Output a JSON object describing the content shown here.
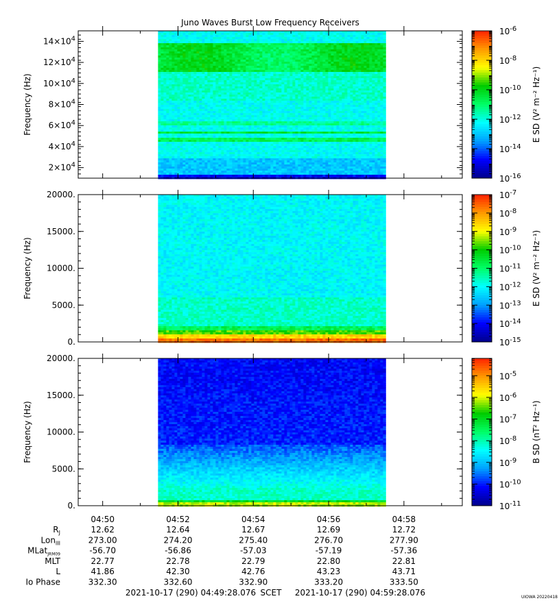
{
  "title": "Juno Waves Burst Low Frequency Receivers",
  "footer_mark": "UIOWA 20220418",
  "time_range": {
    "start": "2021-10-17 (290) 04:49:28.076",
    "label": "SCET",
    "end": "2021-10-17 (290) 04:59:28.076"
  },
  "colors": {
    "colormap": [
      "#00008b",
      "#0000ff",
      "#00a0ff",
      "#00ffff",
      "#00ff66",
      "#00cc00",
      "#ffff00",
      "#ff9900",
      "#ff2200"
    ]
  },
  "chart_data": [
    {
      "type": "heatmap",
      "ylabel": "Frequency (Hz)",
      "ylim": [
        10000,
        150000
      ],
      "yticks": [
        {
          "v": 20000,
          "m": "2×10",
          "e": "4"
        },
        {
          "v": 40000,
          "m": "4×10",
          "e": "4"
        },
        {
          "v": 60000,
          "m": "6×10",
          "e": "4"
        },
        {
          "v": 80000,
          "m": "8×10",
          "e": "4"
        },
        {
          "v": 100000,
          "m": "10×10",
          "e": "4"
        },
        {
          "v": 120000,
          "m": "12×10",
          "e": "4"
        },
        {
          "v": 140000,
          "m": "14×10",
          "e": "4"
        }
      ],
      "colorbar": {
        "label": "E SD (V² m⁻² Hz⁻¹)",
        "log_min": -16,
        "log_max": -6,
        "ticks": [
          {
            "m": "10",
            "e": "-6",
            "v": -6
          },
          {
            "m": "10",
            "e": "-8",
            "v": -8
          },
          {
            "m": "10",
            "e": "-10",
            "v": -10
          },
          {
            "m": "10",
            "e": "-12",
            "v": -12
          },
          {
            "m": "10",
            "e": "-14",
            "v": -14
          },
          {
            "m": "10",
            "e": "-16",
            "v": -16
          }
        ]
      }
    },
    {
      "type": "heatmap",
      "ylabel": "Frequency (Hz)",
      "ylim": [
        0,
        20000
      ],
      "yticks": [
        {
          "v": 0,
          "m": "0.",
          "e": ""
        },
        {
          "v": 5000,
          "m": "5000.",
          "e": ""
        },
        {
          "v": 10000,
          "m": "10000.",
          "e": ""
        },
        {
          "v": 15000,
          "m": "15000.",
          "e": ""
        },
        {
          "v": 20000,
          "m": "20000.",
          "e": ""
        }
      ],
      "colorbar": {
        "label": "E SD (V² m⁻² Hz⁻¹)",
        "log_min": -15,
        "log_max": -7,
        "ticks": [
          {
            "m": "10",
            "e": "-7",
            "v": -7
          },
          {
            "m": "10",
            "e": "-8",
            "v": -8
          },
          {
            "m": "10",
            "e": "-9",
            "v": -9
          },
          {
            "m": "10",
            "e": "-10",
            "v": -10
          },
          {
            "m": "10",
            "e": "-11",
            "v": -11
          },
          {
            "m": "10",
            "e": "-12",
            "v": -12
          },
          {
            "m": "10",
            "e": "-13",
            "v": -13
          },
          {
            "m": "10",
            "e": "-14",
            "v": -14
          },
          {
            "m": "10",
            "e": "-15",
            "v": -15
          }
        ]
      }
    },
    {
      "type": "heatmap",
      "ylabel": "Frequency (Hz)",
      "ylim": [
        0,
        20000
      ],
      "yticks": [
        {
          "v": 0,
          "m": "0.",
          "e": ""
        },
        {
          "v": 5000,
          "m": "5000.",
          "e": ""
        },
        {
          "v": 10000,
          "m": "10000.",
          "e": ""
        },
        {
          "v": 15000,
          "m": "15000.",
          "e": ""
        },
        {
          "v": 20000,
          "m": "20000.",
          "e": ""
        }
      ],
      "colorbar": {
        "label": "B SD (nT² Hz⁻¹)",
        "log_min": -11,
        "log_max": -4.2,
        "ticks": [
          {
            "m": "10",
            "e": "-5",
            "v": -5
          },
          {
            "m": "10",
            "e": "-6",
            "v": -6
          },
          {
            "m": "10",
            "e": "-7",
            "v": -7
          },
          {
            "m": "10",
            "e": "-8",
            "v": -8
          },
          {
            "m": "10",
            "e": "-9",
            "v": -9
          },
          {
            "m": "10",
            "e": "-10",
            "v": -10
          },
          {
            "m": "10",
            "e": "-11",
            "v": -11
          }
        ]
      }
    }
  ],
  "time_axis": {
    "x_range_min": [
      49.35,
      59.55
    ],
    "data_range_min": [
      51.47,
      57.47
    ],
    "ticks": [
      {
        "label": "04:50",
        "min": 50
      },
      {
        "label": "04:52",
        "min": 52
      },
      {
        "label": "04:54",
        "min": 54
      },
      {
        "label": "04:56",
        "min": 56
      },
      {
        "label": "04:58",
        "min": 58
      }
    ]
  },
  "ephemeris": [
    {
      "name": "R",
      "sub": "J",
      "values": [
        "12.62",
        "12.64",
        "12.67",
        "12.69",
        "12.72"
      ]
    },
    {
      "name": "Lon",
      "sub": "III",
      "values": [
        "273.00",
        "274.20",
        "275.40",
        "276.70",
        "277.90"
      ]
    },
    {
      "name": "MLat",
      "sub": "JRM09",
      "values": [
        "-56.70",
        "-56.86",
        "-57.03",
        "-57.19",
        "-57.36"
      ]
    },
    {
      "name": "MLT",
      "sub": "",
      "values": [
        "22.77",
        "22.78",
        "22.79",
        "22.80",
        "22.81"
      ]
    },
    {
      "name": "L",
      "sub": "",
      "values": [
        "41.86",
        "42.30",
        "42.76",
        "43.23",
        "43.71"
      ]
    },
    {
      "name": "Io Phase",
      "sub": "",
      "values": [
        "332.30",
        "332.60",
        "332.90",
        "333.20",
        "333.50"
      ]
    }
  ]
}
